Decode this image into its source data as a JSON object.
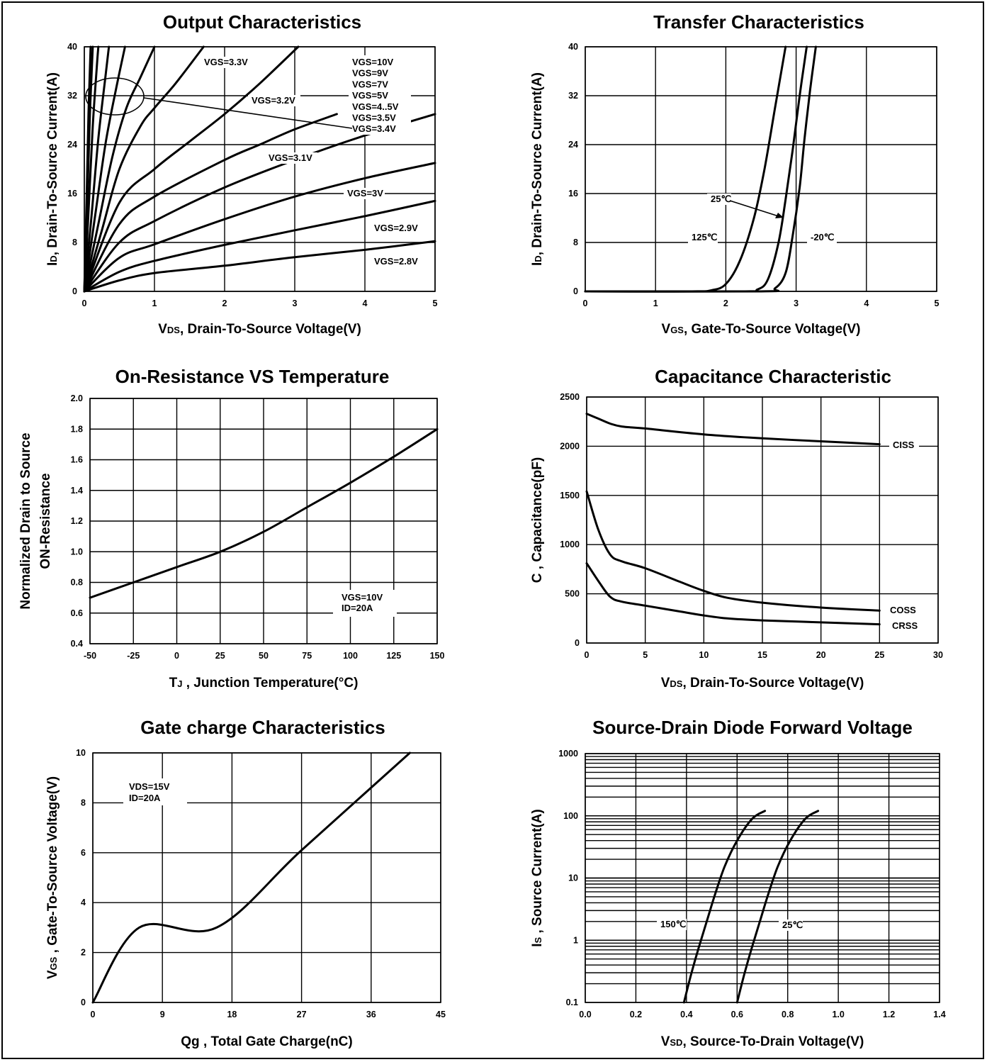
{
  "charts": [
    {
      "id": "output",
      "title": "Output Characteristics",
      "xlabel": "Vᴅˢ, Drain-To-Source Voltage(V)",
      "xlabel_main": "V",
      "xlabel_sub": "DS",
      "xlabel_rest": ", Drain-To-Source Voltage(V)",
      "ylabel_main": "I",
      "ylabel_sub": "D",
      "ylabel_rest": ", Drain-To-Source Current(A)",
      "xticks": [
        "0",
        "1",
        "2",
        "3",
        "4",
        "5"
      ],
      "yticks": [
        "0",
        "8",
        "16",
        "24",
        "32",
        "40"
      ],
      "annotations": [
        "VGS=3.3V",
        "VGS=3.2V",
        "VGS=3.1V",
        "VGS=3V",
        "VGS=2.9V",
        "VGS=2.8V",
        "VGS=10V",
        "VGS=9V",
        "VGS=7V",
        "VGS=5V",
        "VGS=4..5V",
        "VGS=3.5V",
        "VGS=3.4V"
      ]
    },
    {
      "id": "transfer",
      "title": "Transfer Characteristics",
      "xlabel_main": "V",
      "xlabel_sub": "GS",
      "xlabel_rest": ", Gate-To-Source Voltage(V)",
      "ylabel_main": "I",
      "ylabel_sub": "D",
      "ylabel_rest": ", Drain-To-Source Current(A)",
      "xticks": [
        "0",
        "1",
        "2",
        "3",
        "4",
        "5"
      ],
      "yticks": [
        "0",
        "8",
        "16",
        "24",
        "32",
        "40"
      ],
      "annotations": [
        "25℃",
        "125℃",
        "-20℃"
      ]
    },
    {
      "id": "onres",
      "title": "On-Resistance VS Temperature",
      "xlabel_main": "T",
      "xlabel_sub": "J",
      "xlabel_rest": " , Junction Temperature(°C)",
      "ylabel_line1": "Normalized Drain to Source",
      "ylabel_line2": "ON-Resistance",
      "xticks": [
        "-50",
        "-25",
        "0",
        "25",
        "50",
        "75",
        "100",
        "125",
        "150"
      ],
      "yticks": [
        "0.4",
        "0.6",
        "0.8",
        "1.0",
        "1.2",
        "1.4",
        "1.6",
        "1.8",
        "2.0"
      ],
      "annotations": [
        "VGS=10V",
        "ID=20A"
      ]
    },
    {
      "id": "cap",
      "title": "Capacitance Characteristic",
      "xlabel_main": "V",
      "xlabel_sub": "DS",
      "xlabel_rest": ", Drain-To-Source Voltage(V)",
      "ylabel_full": "C , Capacitance(pF)",
      "xticks": [
        "0",
        "5",
        "10",
        "15",
        "20",
        "25",
        "30"
      ],
      "yticks": [
        "0",
        "500",
        "1000",
        "1500",
        "2000",
        "2500"
      ],
      "annotations": [
        "CISS",
        "COSS",
        "CRSS"
      ]
    },
    {
      "id": "gate",
      "title": "Gate charge Characteristics",
      "xlabel_full": "Qg , Total Gate Charge(nC)",
      "ylabel_main": "V",
      "ylabel_sub": "GS",
      "ylabel_rest": " , Gate-To-Source Voltage(V)",
      "xticks": [
        "0",
        "9",
        "18",
        "27",
        "36",
        "45"
      ],
      "yticks": [
        "0",
        "2",
        "4",
        "6",
        "8",
        "10"
      ],
      "annotations": [
        "VDS=15V",
        "ID=20A"
      ]
    },
    {
      "id": "diode",
      "title": "Source-Drain Diode Forward Voltage",
      "xlabel_main": "V",
      "xlabel_sub": "SD",
      "xlabel_rest": ", Source-To-Drain Voltage(V)",
      "ylabel_main": "I",
      "ylabel_sub": "S",
      "ylabel_rest": " , Source Current(A)",
      "xticks": [
        "0.0",
        "0.2",
        "0.4",
        "0.6",
        "0.8",
        "1.0",
        "1.2",
        "1.4"
      ],
      "yticks": [
        "0.1",
        "1",
        "10",
        "100",
        "1000"
      ],
      "annotations": [
        "150℃",
        "25℃"
      ]
    }
  ],
  "chart_data": [
    {
      "type": "line",
      "title": "Output Characteristics",
      "xlabel": "VDS, Drain-To-Source Voltage(V)",
      "ylabel": "ID, Drain-To-Source Current(A)",
      "xlim": [
        0,
        5
      ],
      "ylim": [
        0,
        40
      ],
      "grid": true,
      "series": [
        {
          "name": "VGS=2.8V",
          "x": [
            0,
            0.5,
            1,
            2,
            3,
            4,
            5
          ],
          "y": [
            0,
            1.8,
            3,
            4.2,
            5.6,
            6.8,
            8.2
          ]
        },
        {
          "name": "VGS=2.9V",
          "x": [
            0,
            0.5,
            1,
            2,
            3,
            4,
            5
          ],
          "y": [
            0,
            3.2,
            5,
            7.6,
            10,
            12.3,
            14.8
          ]
        },
        {
          "name": "VGS=3V",
          "x": [
            0,
            0.5,
            1,
            2,
            3,
            4,
            5
          ],
          "y": [
            0,
            5.5,
            7.7,
            11.8,
            15.5,
            18.5,
            21
          ]
        },
        {
          "name": "VGS=3.1V",
          "x": [
            0,
            0.5,
            1,
            2,
            3,
            4,
            5
          ],
          "y": [
            0,
            8,
            11.5,
            17,
            21.5,
            25.5,
            29
          ]
        },
        {
          "name": "VGS=3.2V",
          "x": [
            0,
            0.5,
            1,
            2,
            2.5,
            3,
            3.6
          ],
          "y": [
            0,
            11,
            15.5,
            21.5,
            24,
            26.5,
            29
          ]
        },
        {
          "name": "VGS=3.3V",
          "x": [
            0,
            0.5,
            1,
            1.5,
            2,
            2.5,
            3.05
          ],
          "y": [
            0,
            14.5,
            20,
            24.5,
            29,
            34,
            40
          ]
        },
        {
          "name": "VGS=3.4V",
          "x": [
            0,
            0.25,
            0.5,
            0.8,
            1,
            1.3,
            1.7
          ],
          "y": [
            0,
            10,
            20,
            27,
            30,
            34,
            40
          ]
        },
        {
          "name": "VGS=3.5V",
          "x": [
            0,
            0.2,
            0.4,
            0.6,
            0.8,
            1.0
          ],
          "y": [
            0,
            11,
            22,
            30,
            35,
            40
          ]
        },
        {
          "name": "VGS=4..5V",
          "x": [
            0,
            0.15,
            0.3,
            0.45,
            0.58
          ],
          "y": [
            0,
            12,
            24,
            33,
            40
          ]
        },
        {
          "name": "VGS=5V",
          "x": [
            0,
            0.1,
            0.2,
            0.3,
            0.35
          ],
          "y": [
            0,
            12,
            25,
            35,
            40
          ]
        },
        {
          "name": "VGS=7V",
          "x": [
            0,
            0.06,
            0.12,
            0.18,
            0.2
          ],
          "y": [
            0,
            13,
            27,
            37,
            40
          ]
        },
        {
          "name": "VGS=9V",
          "x": [
            0,
            0.04,
            0.08,
            0.12
          ],
          "y": [
            0,
            14,
            29,
            40
          ]
        },
        {
          "name": "VGS=10V",
          "x": [
            0,
            0.03,
            0.06,
            0.09
          ],
          "y": [
            0,
            14,
            29,
            40
          ]
        }
      ]
    },
    {
      "type": "line",
      "title": "Transfer Characteristics",
      "xlabel": "VGS, Gate-To-Source Voltage(V)",
      "ylabel": "ID, Drain-To-Source Current(A)",
      "xlim": [
        0,
        5
      ],
      "ylim": [
        0,
        40
      ],
      "grid": true,
      "series": [
        {
          "name": "125℃",
          "x": [
            0,
            1.5,
            1.8,
            2.0,
            2.2,
            2.4,
            2.55,
            2.7,
            2.85
          ],
          "y": [
            0,
            0,
            0.2,
            1.2,
            5,
            12,
            20,
            30,
            40
          ]
        },
        {
          "name": "25℃",
          "x": [
            0,
            2.2,
            2.45,
            2.6,
            2.75,
            2.85,
            2.95,
            3.05,
            3.15
          ],
          "y": [
            0,
            0,
            0.3,
            2,
            8,
            15,
            23,
            32,
            40
          ]
        },
        {
          "name": "-20℃",
          "x": [
            0,
            2.5,
            2.7,
            2.85,
            2.95,
            3.05,
            3.12,
            3.2,
            3.28
          ],
          "y": [
            0,
            0,
            0.5,
            3,
            9,
            17,
            25,
            33,
            40
          ]
        }
      ]
    },
    {
      "type": "line",
      "title": "On-Resistance VS Temperature",
      "xlabel": "TJ , Junction Temperature(°C)",
      "ylabel": "Normalized Drain to Source ON-Resistance",
      "xlim": [
        -50,
        150
      ],
      "ylim": [
        0.4,
        2.0
      ],
      "grid": true,
      "series": [
        {
          "name": "VGS=10V ID=20A",
          "x": [
            -50,
            -25,
            0,
            25,
            50,
            75,
            100,
            125,
            150
          ],
          "y": [
            0.7,
            0.8,
            0.9,
            1.0,
            1.13,
            1.29,
            1.45,
            1.62,
            1.8
          ]
        }
      ]
    },
    {
      "type": "line",
      "title": "Capacitance Characteristic",
      "xlabel": "VDS, Drain-To-Source Voltage(V)",
      "ylabel": "C , Capacitance(pF)",
      "xlim": [
        0,
        30
      ],
      "ylim": [
        0,
        2500
      ],
      "grid": true,
      "series": [
        {
          "name": "CISS",
          "x": [
            0,
            1,
            2,
            3,
            5,
            10,
            15,
            20,
            25
          ],
          "y": [
            2330,
            2280,
            2230,
            2200,
            2180,
            2120,
            2080,
            2050,
            2020
          ]
        },
        {
          "name": "COSS",
          "x": [
            0,
            1,
            2,
            3,
            5,
            8,
            10,
            12,
            15,
            20,
            25
          ],
          "y": [
            1540,
            1150,
            900,
            830,
            760,
            620,
            530,
            460,
            410,
            360,
            330
          ]
        },
        {
          "name": "CRSS",
          "x": [
            0,
            1,
            2,
            3,
            5,
            8,
            10,
            12,
            15,
            20,
            25
          ],
          "y": [
            810,
            630,
            470,
            420,
            380,
            320,
            280,
            250,
            230,
            210,
            190
          ]
        }
      ]
    },
    {
      "type": "line",
      "title": "Gate charge Characteristics",
      "xlabel": "Qg , Total Gate Charge(nC)",
      "ylabel": "VGS , Gate-To-Source Voltage(V)",
      "xlim": [
        0,
        45
      ],
      "ylim": [
        0,
        10
      ],
      "grid": true,
      "series": [
        {
          "name": "VDS=15V ID=20A",
          "x": [
            0,
            6,
            16,
            27,
            41
          ],
          "y": [
            0,
            3,
            3,
            6.1,
            10
          ]
        }
      ]
    },
    {
      "type": "line",
      "title": "Source-Drain Diode Forward Voltage",
      "xlabel": "VSD, Source-To-Drain Voltage(V)",
      "ylabel": "IS , Source Current(A)",
      "xlim": [
        0,
        1.4
      ],
      "ylim": [
        0.1,
        1000
      ],
      "yscale": "log",
      "grid": true,
      "series": [
        {
          "name": "150℃",
          "x": [
            0.39,
            0.42,
            0.45,
            0.48,
            0.51,
            0.55,
            0.6,
            0.66,
            0.71
          ],
          "y": [
            0.1,
            0.3,
            0.8,
            2,
            5,
            15,
            40,
            90,
            120
          ]
        },
        {
          "name": "25℃",
          "x": [
            0.6,
            0.63,
            0.66,
            0.69,
            0.72,
            0.76,
            0.81,
            0.87,
            0.92
          ],
          "y": [
            0.1,
            0.3,
            0.8,
            2,
            5,
            15,
            40,
            90,
            120
          ]
        }
      ]
    }
  ]
}
